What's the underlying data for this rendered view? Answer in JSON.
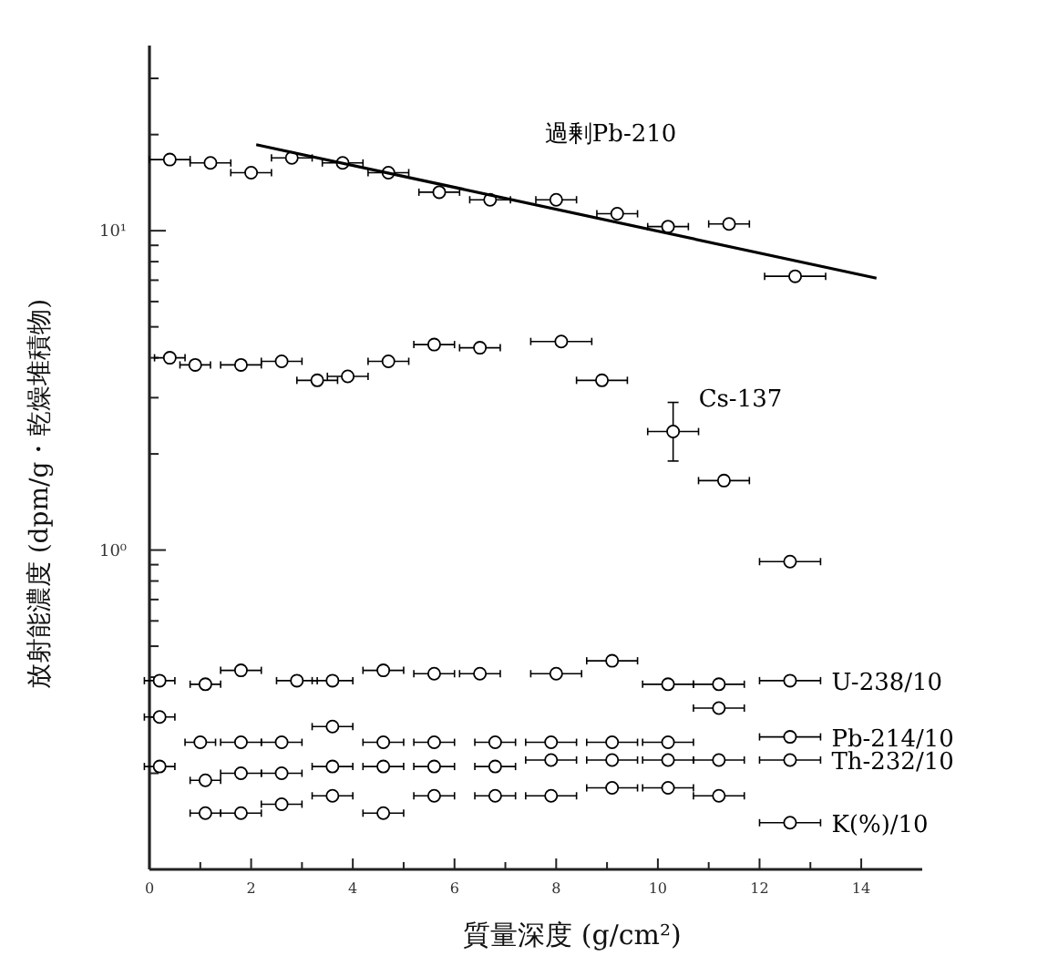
{
  "chart_data": {
    "type": "scatter",
    "xlabel": "質量深度 (g/cm²)",
    "ylabel": "放射能濃度 (dpm/g・乾燥堆積物)",
    "log": "y",
    "grid": false,
    "marker": "circle",
    "xlim": [
      0,
      15.2
    ],
    "xticks": [
      0,
      {
        "value": 1,
        "label": null
      },
      2,
      {
        "value": 3,
        "label": null
      },
      4,
      {
        "value": 5,
        "label": null
      },
      6,
      {
        "value": 7,
        "label": null
      },
      8,
      {
        "value": 9,
        "label": null
      },
      10,
      {
        "value": 11,
        "label": null
      },
      12,
      {
        "value": 13,
        "label": null
      },
      14
    ],
    "ylim": [
      0.1,
      38
    ],
    "yticks": [
      {
        "value": 0.2,
        "label": null
      },
      {
        "value": 0.3,
        "label": null
      },
      {
        "value": 0.4,
        "label": null
      },
      {
        "value": 0.5,
        "label": null
      },
      {
        "value": 0.6,
        "label": null
      },
      {
        "value": 0.7,
        "label": null
      },
      {
        "value": 0.8,
        "label": null
      },
      {
        "value": 0.9,
        "label": null
      },
      {
        "value": 1,
        "label": "10⁰"
      },
      {
        "value": 2,
        "label": null
      },
      {
        "value": 3,
        "label": null
      },
      {
        "value": 4,
        "label": null
      },
      {
        "value": 5,
        "label": null
      },
      {
        "value": 6,
        "label": null
      },
      {
        "value": 7,
        "label": null
      },
      {
        "value": 8,
        "label": null
      },
      {
        "value": 9,
        "label": null
      },
      {
        "value": 10,
        "label": "10¹"
      },
      {
        "value": 20,
        "label": null
      },
      {
        "value": 30,
        "label": null
      }
    ],
    "series": [
      {
        "name": "過剰Pb-210",
        "color": "#000000",
        "x": [
          0.4,
          1.2,
          2.0,
          2.8,
          3.8,
          4.7,
          5.7,
          6.7,
          8.0,
          9.2,
          10.2,
          11.4,
          12.7
        ],
        "values": [
          16.7,
          16.3,
          15.2,
          16.9,
          16.3,
          15.2,
          13.2,
          12.5,
          12.5,
          11.3,
          10.3,
          10.5,
          7.2
        ],
        "xerrors": [
          0.4,
          0.4,
          0.4,
          0.4,
          0.4,
          0.4,
          0.4,
          0.4,
          0.4,
          0.4,
          0.4,
          0.4,
          0.6
        ]
      },
      {
        "type": "line",
        "color": "#000000",
        "marker": "none",
        "line_style": "solid",
        "x": [
          2.1,
          14.3
        ],
        "values": [
          18.6,
          7.1
        ]
      },
      {
        "name": "Cs-137",
        "color": "#000000",
        "x": [
          0.4,
          0.9,
          1.8,
          2.6,
          3.3,
          3.9,
          4.7,
          5.6,
          6.5,
          8.1,
          8.9,
          10.3,
          11.3,
          12.6
        ],
        "values": [
          4.0,
          3.8,
          3.8,
          3.9,
          3.4,
          3.5,
          3.9,
          4.4,
          4.3,
          4.5,
          3.4,
          2.35,
          1.65,
          0.92
        ],
        "xerrors": [
          0.3,
          0.3,
          0.4,
          0.4,
          0.4,
          0.4,
          0.4,
          0.4,
          0.4,
          0.6,
          0.5,
          0.5,
          0.5,
          0.6
        ],
        "errors": [
          null,
          null,
          null,
          null,
          null,
          null,
          null,
          null,
          null,
          null,
          null,
          [
            1.9,
            2.9
          ],
          null,
          null
        ]
      },
      {
        "name": "U-238/10",
        "color": "#000000",
        "x": [
          0.2,
          1.1,
          1.8,
          2.9,
          3.6,
          4.6,
          5.6,
          6.5,
          8.0,
          9.1,
          10.2,
          11.2,
          12.6
        ],
        "values": [
          0.39,
          0.38,
          0.42,
          0.39,
          0.39,
          0.42,
          0.41,
          0.41,
          0.41,
          0.45,
          0.38,
          0.38,
          0.39
        ],
        "xerrors": [
          0.3,
          0.3,
          0.4,
          0.4,
          0.4,
          0.4,
          0.4,
          0.4,
          0.5,
          0.5,
          0.5,
          0.5,
          0.6
        ]
      },
      {
        "name": "Pb-214/10",
        "color": "#000000",
        "x": [
          0.2,
          1.0,
          1.8,
          2.6,
          3.6,
          4.6,
          5.6,
          6.8,
          7.9,
          9.1,
          10.2,
          11.2,
          12.6
        ],
        "values": [
          0.3,
          0.25,
          0.25,
          0.25,
          0.28,
          0.25,
          0.25,
          0.25,
          0.25,
          0.25,
          0.25,
          0.32,
          0.26
        ],
        "xerrors": [
          0.3,
          0.3,
          0.4,
          0.4,
          0.4,
          0.4,
          0.4,
          0.4,
          0.5,
          0.5,
          0.5,
          0.5,
          0.6
        ]
      },
      {
        "name": "Th-232/10",
        "color": "#000000",
        "x": [
          0.2,
          1.1,
          1.8,
          2.6,
          3.6,
          4.6,
          5.6,
          6.8,
          7.9,
          9.1,
          10.2,
          11.2,
          12.6
        ],
        "values": [
          0.21,
          0.19,
          0.2,
          0.2,
          0.21,
          0.21,
          0.21,
          0.21,
          0.22,
          0.22,
          0.22,
          0.22,
          0.22
        ],
        "xerrors": [
          0.3,
          0.3,
          0.4,
          0.4,
          0.4,
          0.4,
          0.4,
          0.4,
          0.5,
          0.5,
          0.5,
          0.5,
          0.6
        ]
      },
      {
        "name": "K(%)/10",
        "color": "#000000",
        "x": [
          1.1,
          1.8,
          2.6,
          3.6,
          4.6,
          5.6,
          6.8,
          7.9,
          9.1,
          10.2,
          11.2,
          12.6
        ],
        "values": [
          0.15,
          0.15,
          0.16,
          0.17,
          0.15,
          0.17,
          0.17,
          0.17,
          0.18,
          0.18,
          0.17,
          0.14
        ],
        "xerrors": [
          0.3,
          0.4,
          0.4,
          0.4,
          0.4,
          0.4,
          0.4,
          0.5,
          0.5,
          0.5,
          0.5,
          0.6
        ]
      }
    ]
  }
}
